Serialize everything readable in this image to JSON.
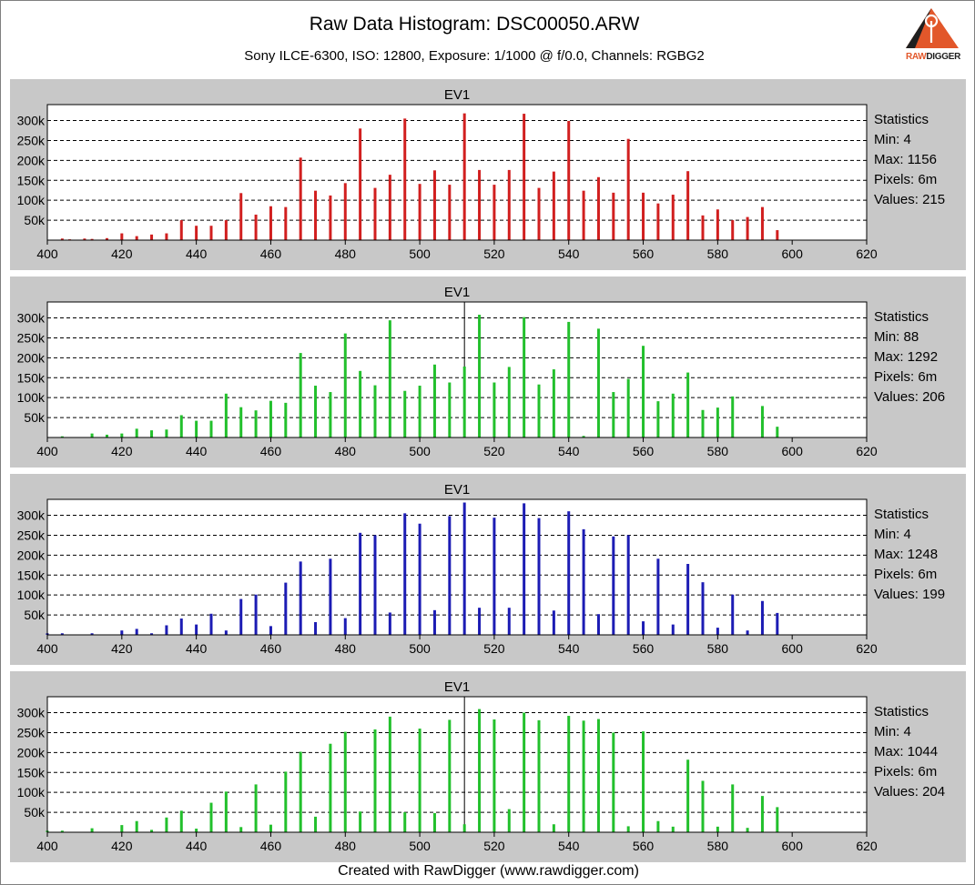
{
  "header": {
    "title": "Raw Data Histogram: DSC00050.ARW",
    "subtitle": "Sony ILCE-6300, ISO: 12800, Exposure: 1/1000 @ f/0.0, Channels: RGBG2",
    "logo_text_a": "RAW",
    "logo_text_b": "DIGGER",
    "logo_color": "#e2572a"
  },
  "footer": {
    "text": "Created with RawDigger (www.rawdigger.com)"
  },
  "chart_data": [
    {
      "type": "bar",
      "title": "EV1",
      "color": "#d11f1f",
      "xlim": [
        400,
        620
      ],
      "xticks": [
        400,
        420,
        440,
        460,
        480,
        500,
        520,
        540,
        560,
        580,
        600,
        620
      ],
      "ylim": [
        0,
        340000
      ],
      "yticks": [
        50000,
        100000,
        150000,
        200000,
        250000,
        300000
      ],
      "ytick_labels": [
        "50k",
        "100k",
        "150k",
        "200k",
        "250k",
        "300k"
      ],
      "grid": true,
      "marker_x": null,
      "x": [
        404,
        406,
        410,
        412,
        416,
        420,
        424,
        428,
        432,
        436,
        440,
        444,
        448,
        452,
        456,
        460,
        464,
        468,
        472,
        476,
        480,
        484,
        488,
        492,
        496,
        500,
        504,
        508,
        512,
        516,
        520,
        524,
        528,
        532,
        536,
        540,
        544,
        548,
        552,
        556,
        560,
        564,
        568,
        572,
        576,
        580,
        584,
        588,
        592,
        596
      ],
      "values": [
        4000,
        2000,
        4000,
        3000,
        5000,
        17000,
        10000,
        14000,
        17000,
        50000,
        36000,
        36000,
        50000,
        118000,
        64000,
        85000,
        83000,
        207000,
        124000,
        112000,
        143000,
        280000,
        131000,
        164000,
        305000,
        141000,
        175000,
        139000,
        318000,
        176000,
        139000,
        176000,
        317000,
        131000,
        172000,
        299000,
        124000,
        158000,
        119000,
        254000,
        119000,
        92000,
        114000,
        173000,
        62000,
        77000,
        50000,
        58000,
        83000,
        25000
      ],
      "stats": {
        "heading": "Statistics",
        "min": "Min: 4",
        "max": "Max: 1156",
        "pixels": "Pixels: 6m",
        "values": "Values: 215"
      }
    },
    {
      "type": "bar",
      "title": "EV1",
      "color": "#22c02c",
      "xlim": [
        400,
        620
      ],
      "xticks": [
        400,
        420,
        440,
        460,
        480,
        500,
        520,
        540,
        560,
        580,
        600,
        620
      ],
      "ylim": [
        0,
        340000
      ],
      "yticks": [
        50000,
        100000,
        150000,
        200000,
        250000,
        300000
      ],
      "ytick_labels": [
        "50k",
        "100k",
        "150k",
        "200k",
        "250k",
        "300k"
      ],
      "grid": true,
      "marker_x": 512,
      "x": [
        404,
        412,
        416,
        420,
        424,
        428,
        432,
        436,
        440,
        444,
        448,
        452,
        456,
        460,
        464,
        468,
        472,
        476,
        480,
        484,
        488,
        492,
        496,
        500,
        504,
        508,
        512,
        516,
        520,
        524,
        528,
        532,
        536,
        540,
        544,
        548,
        552,
        556,
        560,
        564,
        568,
        572,
        576,
        580,
        584,
        592,
        596
      ],
      "values": [
        3000,
        10000,
        7000,
        10000,
        22000,
        18000,
        20000,
        56000,
        42000,
        42000,
        110000,
        76000,
        68000,
        92000,
        87000,
        212000,
        130000,
        114000,
        261000,
        167000,
        131000,
        294000,
        117000,
        130000,
        183000,
        138000,
        178000,
        308000,
        138000,
        177000,
        302000,
        133000,
        171000,
        290000,
        4000,
        273000,
        114000,
        147000,
        230000,
        91000,
        110000,
        163000,
        69000,
        75000,
        103000,
        79000,
        27000
      ],
      "stats": {
        "heading": "Statistics",
        "min": "Min: 88",
        "max": "Max: 1292",
        "pixels": "Pixels: 6m",
        "values": "Values: 206"
      }
    },
    {
      "type": "bar",
      "title": "EV1",
      "color": "#1c1cb4",
      "xlim": [
        400,
        620
      ],
      "xticks": [
        400,
        420,
        440,
        460,
        480,
        500,
        520,
        540,
        560,
        580,
        600,
        620
      ],
      "ylim": [
        0,
        340000
      ],
      "yticks": [
        50000,
        100000,
        150000,
        200000,
        250000,
        300000
      ],
      "ytick_labels": [
        "50k",
        "100k",
        "150k",
        "200k",
        "250k",
        "300k"
      ],
      "grid": true,
      "marker_x": null,
      "x": [
        400,
        404,
        412,
        420,
        424,
        428,
        432,
        436,
        440,
        444,
        448,
        452,
        456,
        460,
        464,
        468,
        472,
        476,
        480,
        484,
        488,
        492,
        496,
        500,
        504,
        508,
        512,
        516,
        520,
        524,
        528,
        532,
        536,
        540,
        544,
        548,
        552,
        556,
        560,
        564,
        568,
        572,
        576,
        580,
        584,
        588,
        592,
        596
      ],
      "values": [
        4000,
        4000,
        4000,
        11000,
        15000,
        4000,
        24000,
        41000,
        26000,
        53000,
        11000,
        90000,
        101000,
        22000,
        131000,
        184000,
        32000,
        191000,
        42000,
        256000,
        250000,
        56000,
        305000,
        279000,
        62000,
        298000,
        332000,
        68000,
        294000,
        68000,
        330000,
        293000,
        61000,
        310000,
        265000,
        52000,
        247000,
        250000,
        34000,
        191000,
        26000,
        178000,
        132000,
        18000,
        101000,
        11000,
        85000,
        55000
      ],
      "stats": {
        "heading": "Statistics",
        "min": "Min: 4",
        "max": "Max: 1248",
        "pixels": "Pixels: 6m",
        "values": "Values: 199"
      }
    },
    {
      "type": "bar",
      "title": "EV1",
      "color": "#22c02c",
      "xlim": [
        400,
        620
      ],
      "xticks": [
        400,
        420,
        440,
        460,
        480,
        500,
        520,
        540,
        560,
        580,
        600,
        620
      ],
      "ylim": [
        0,
        340000
      ],
      "yticks": [
        50000,
        100000,
        150000,
        200000,
        250000,
        300000
      ],
      "ytick_labels": [
        "50k",
        "100k",
        "150k",
        "200k",
        "250k",
        "300k"
      ],
      "grid": true,
      "marker_x": 512,
      "x": [
        400,
        404,
        412,
        420,
        424,
        428,
        432,
        436,
        440,
        444,
        448,
        452,
        456,
        460,
        464,
        468,
        472,
        476,
        480,
        484,
        488,
        492,
        496,
        500,
        504,
        508,
        512,
        516,
        520,
        524,
        528,
        532,
        536,
        540,
        544,
        548,
        552,
        556,
        560,
        564,
        568,
        572,
        576,
        580,
        584,
        588,
        592,
        596
      ],
      "values": [
        4000,
        4000,
        10000,
        18000,
        28000,
        6000,
        37000,
        54000,
        9000,
        74000,
        102000,
        13000,
        120000,
        19000,
        152000,
        202000,
        39000,
        222000,
        252000,
        52000,
        258000,
        290000,
        50000,
        260000,
        48000,
        282000,
        20000,
        309000,
        283000,
        58000,
        300000,
        281000,
        20000,
        292000,
        280000,
        284000,
        250000,
        15000,
        253000,
        28000,
        14000,
        182000,
        129000,
        14000,
        120000,
        11000,
        91000,
        63000
      ],
      "stats": {
        "heading": "Statistics",
        "min": "Min: 4",
        "max": "Max: 1044",
        "pixels": "Pixels: 6m",
        "values": "Values: 204"
      }
    }
  ]
}
